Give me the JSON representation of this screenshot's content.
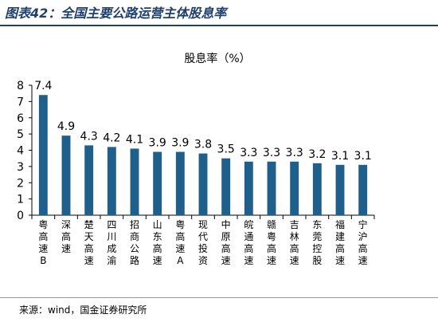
{
  "figure_title": "图表42：全国主要公路运营主体股息率",
  "source_text": "来源：wind，国金证券研究所",
  "colors": {
    "bar": "#1f5f8b",
    "title": "#1f3f6e"
  },
  "chart_data": {
    "type": "bar",
    "title": "股息率（%）",
    "xlabel": "",
    "ylabel": "",
    "ylim": [
      0,
      8
    ],
    "yticks": [
      0,
      1,
      2,
      3,
      4,
      5,
      6,
      7,
      8
    ],
    "grid": false,
    "categories": [
      "粤高速B",
      "深高速",
      "楚天高速",
      "四川成渝",
      "招商公路",
      "山东高速",
      "粤高速A",
      "现代投资",
      "中原高速",
      "皖通高速",
      "赣粤高速",
      "吉林高速",
      "东莞控股",
      "福建高速",
      "宁沪高速"
    ],
    "values": [
      7.4,
      4.9,
      4.3,
      4.2,
      4.1,
      3.9,
      3.9,
      3.8,
      3.5,
      3.3,
      3.3,
      3.3,
      3.2,
      3.1,
      3.1
    ],
    "data_labels": [
      "7.4",
      "4.9",
      "4.3",
      "4.2",
      "4.1",
      "3.9",
      "3.9",
      "3.8",
      "3.5",
      "3.3",
      "3.3",
      "3.3",
      "3.2",
      "3.1",
      "3.1"
    ]
  }
}
